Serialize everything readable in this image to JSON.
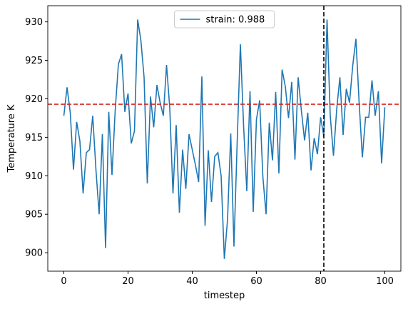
{
  "chart_data": {
    "type": "line",
    "x_label": "timestep",
    "y_label": "Temperature K",
    "x": [
      0,
      1,
      2,
      3,
      4,
      5,
      6,
      7,
      8,
      9,
      10,
      11,
      12,
      13,
      14,
      15,
      16,
      17,
      18,
      19,
      20,
      21,
      22,
      23,
      24,
      25,
      26,
      27,
      28,
      29,
      30,
      31,
      32,
      33,
      34,
      35,
      36,
      37,
      38,
      39,
      40,
      41,
      42,
      43,
      44,
      45,
      46,
      47,
      48,
      49,
      50,
      51,
      52,
      53,
      54,
      55,
      56,
      57,
      58,
      59,
      60,
      61,
      62,
      63,
      64,
      65,
      66,
      67,
      68,
      69,
      70,
      71,
      72,
      73,
      74,
      75,
      76,
      77,
      78,
      79,
      80,
      81,
      82,
      83,
      84,
      85,
      86,
      87,
      88,
      89,
      90,
      91,
      92,
      93,
      94,
      95,
      96,
      97,
      98,
      99,
      100
    ],
    "series": [
      {
        "name": "strain: 0.988",
        "color": "#1f77b4",
        "values": [
          917.8,
          921.5,
          918.2,
          910.8,
          917,
          914.5,
          907.7,
          913,
          913.4,
          917.8,
          910.8,
          905,
          915.4,
          900.6,
          918.3,
          910.1,
          918.5,
          924.5,
          925.8,
          918.3,
          920.7,
          914.2,
          915.8,
          930.3,
          927.6,
          922.8,
          909,
          920.3,
          916.3,
          921.8,
          919.5,
          917.8,
          924.4,
          918.8,
          907.7,
          916.6,
          905.2,
          913.4,
          908.3,
          915.4,
          913.4,
          911.4,
          909.2,
          922.9,
          903.5,
          913.3,
          906.6,
          912.5,
          913,
          910,
          899.2,
          904.3,
          915.5,
          900.8,
          914.3,
          927.1,
          916.5,
          908,
          921,
          905.3,
          917.3,
          919.8,
          909.9,
          905,
          916.9,
          912,
          920.9,
          910.3,
          923.8,
          921.6,
          917.5,
          922.2,
          912.1,
          922.8,
          918.5,
          914.6,
          918.2,
          910.7,
          914.9,
          912.8,
          917.6,
          915.1,
          930.3,
          917.8,
          912.6,
          918.6,
          922.8,
          915.3,
          921.3,
          919.5,
          924.3,
          927.8,
          919.5,
          912.4,
          917.6,
          917.6,
          922.4,
          917.8,
          921,
          911.6,
          918.9
        ]
      }
    ],
    "hlines": [
      {
        "value": 919.3,
        "color": "#d62728"
      }
    ],
    "vlines": [
      {
        "value": 81,
        "color": "#000000"
      }
    ],
    "xlim": [
      -5,
      105
    ],
    "ylim": [
      897.6,
      932.1
    ],
    "xticks": [
      0,
      20,
      40,
      60,
      80,
      100
    ],
    "yticks": [
      900,
      905,
      910,
      915,
      920,
      925,
      930
    ],
    "legend": "upper center"
  }
}
